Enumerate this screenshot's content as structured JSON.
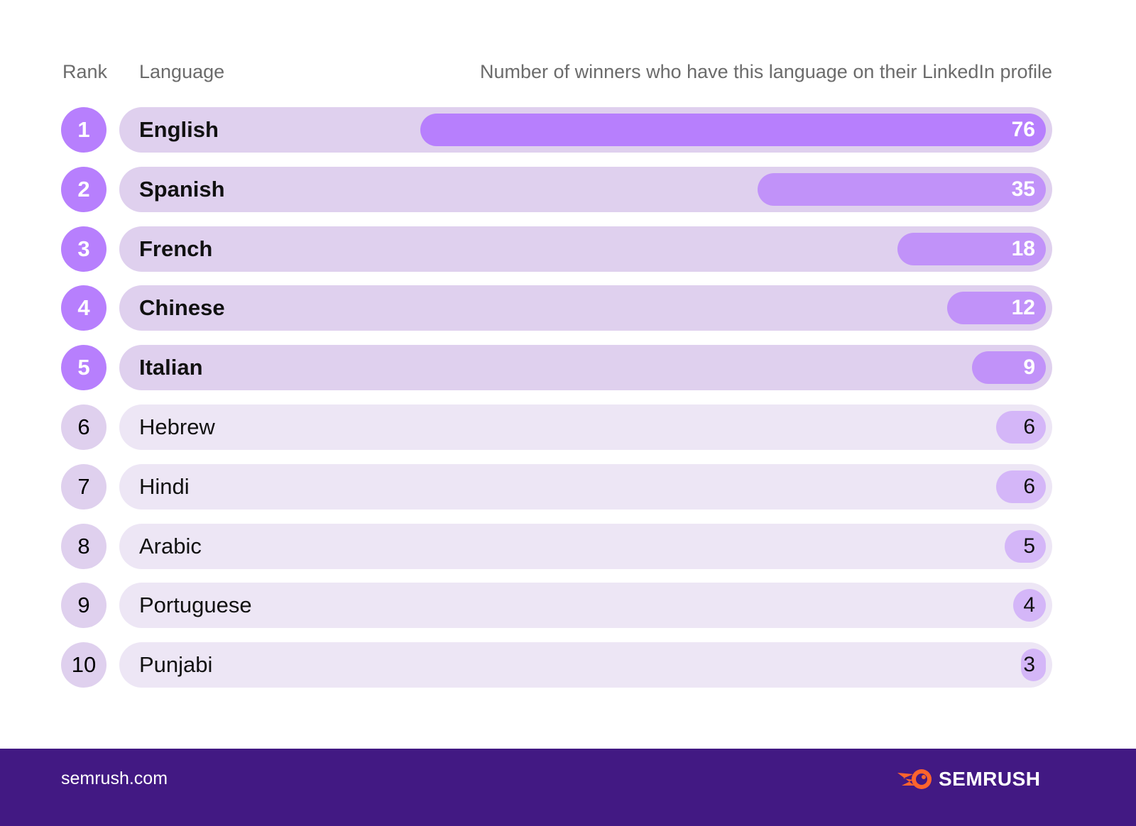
{
  "chart_data": {
    "type": "bar",
    "orientation": "horizontal",
    "headers": {
      "rank": "Rank",
      "language": "Language",
      "value": "Number of winners who have this language on their LinkedIn profile"
    },
    "categories": [
      "English",
      "Spanish",
      "French",
      "Chinese",
      "Italian",
      "Hebrew",
      "Hindi",
      "Arabic",
      "Portuguese",
      "Punjabi"
    ],
    "ranks": [
      "1",
      "2",
      "3",
      "4",
      "5",
      "6",
      "7",
      "8",
      "9",
      "10"
    ],
    "values": [
      76,
      35,
      18,
      12,
      9,
      6,
      6,
      5,
      4,
      3
    ],
    "highlighted_top": 5,
    "colors": {
      "top_bar": "#b77ffd",
      "top_bar_secondary": "#c192f9",
      "top_track": "#dfd0ee",
      "rest_bar": "#d4b6f8",
      "rest_track": "#ede6f5",
      "footer": "#421983",
      "logo_orange": "#ff642d"
    }
  },
  "footer": {
    "site": "semrush.com",
    "logo": "SEMRUSH"
  }
}
